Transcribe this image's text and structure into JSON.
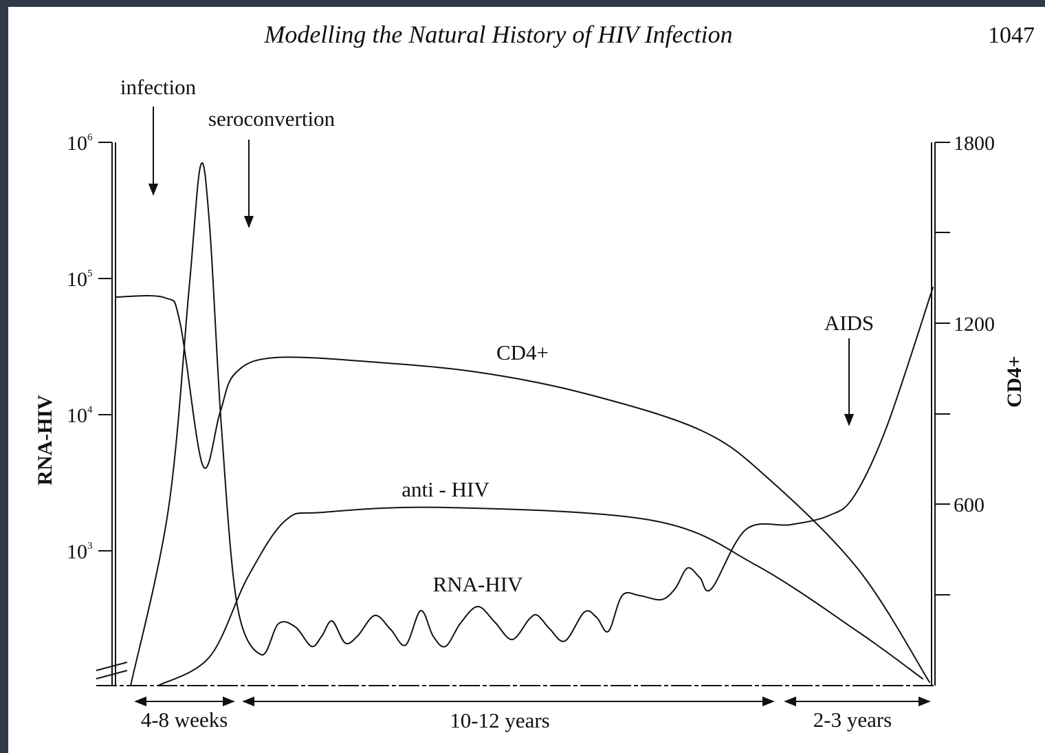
{
  "header": {
    "title": "Modelling the Natural History of HIV Infection",
    "page_number": "1047"
  },
  "figure": {
    "annotations": {
      "infection": "infection",
      "seroconversion": "seroconvertion",
      "aids": "AIDS"
    },
    "curve_labels": {
      "cd4": "CD4+",
      "anti_hiv": "anti - HIV",
      "rna_hiv": "RNA-HIV"
    },
    "left_axis": {
      "title": "RNA-HIV",
      "ticks": [
        {
          "base": "10",
          "exp": "6"
        },
        {
          "base": "10",
          "exp": "5"
        },
        {
          "base": "10",
          "exp": "4"
        },
        {
          "base": "10",
          "exp": "3"
        }
      ]
    },
    "right_axis": {
      "title": "CD4+",
      "ticks": [
        "1800",
        "1200",
        "600"
      ]
    },
    "periods": [
      "4-8 weeks",
      "10-12 years",
      "2-3 years"
    ]
  }
}
